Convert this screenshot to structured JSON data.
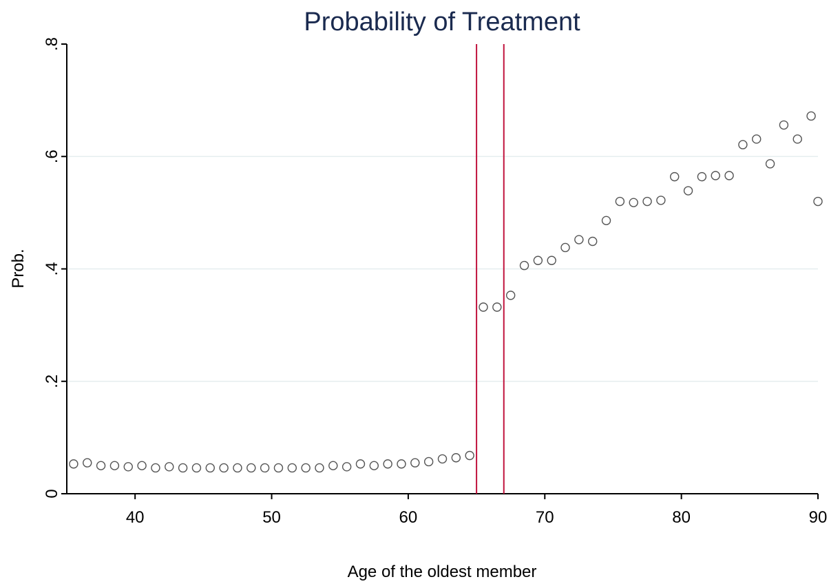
{
  "chart_data": {
    "type": "scatter",
    "title": "Probability of Treatment",
    "xlabel": "Age of the oldest member",
    "ylabel": "Prob.",
    "xlim": [
      35,
      90
    ],
    "ylim": [
      0,
      0.8
    ],
    "x_ticks": [
      40,
      50,
      60,
      70,
      80,
      90
    ],
    "x_tick_labels": [
      "40",
      "50",
      "60",
      "70",
      "80",
      "90"
    ],
    "y_ticks": [
      0,
      0.2,
      0.4,
      0.6,
      0.8
    ],
    "y_tick_labels": [
      "0",
      ".2",
      ".4",
      ".6",
      ".8"
    ],
    "grid": true,
    "reference_lines_x": [
      65,
      67
    ],
    "colors": {
      "title": "#1a2a4f",
      "gridline": "#e6eeef",
      "reference_line": "#c0123c",
      "marker": "#555555",
      "axis": "#000000"
    },
    "series": [
      {
        "marker": "hollow-circle",
        "x": [
          35.5,
          36.5,
          37.5,
          38.5,
          39.5,
          40.5,
          41.5,
          42.5,
          43.5,
          44.5,
          45.5,
          46.5,
          47.5,
          48.5,
          49.5,
          50.5,
          51.5,
          52.5,
          53.5,
          54.5,
          55.5,
          56.5,
          57.5,
          58.5,
          59.5,
          60.5,
          61.5,
          62.5,
          63.5,
          64.5,
          65.5,
          66.5,
          67.5,
          68.5,
          69.5,
          70.5,
          71.5,
          72.5,
          73.5,
          74.5,
          75.5,
          76.5,
          77.5,
          78.5,
          79.5,
          80.5,
          81.5,
          82.5,
          83.5,
          84.5,
          85.5,
          86.5,
          87.5,
          88.5,
          89.5,
          90
        ],
        "y": [
          0.053,
          0.055,
          0.05,
          0.05,
          0.048,
          0.05,
          0.046,
          0.048,
          0.046,
          0.046,
          0.046,
          0.046,
          0.046,
          0.046,
          0.046,
          0.046,
          0.046,
          0.046,
          0.046,
          0.05,
          0.048,
          0.053,
          0.05,
          0.053,
          0.053,
          0.055,
          0.057,
          0.062,
          0.064,
          0.068,
          0.332,
          0.332,
          0.353,
          0.406,
          0.415,
          0.415,
          0.438,
          0.452,
          0.449,
          0.486,
          0.52,
          0.518,
          0.52,
          0.522,
          0.564,
          0.539,
          0.564,
          0.566,
          0.566,
          0.621,
          0.631,
          0.587,
          0.656,
          0.631,
          0.672,
          0.52
        ]
      }
    ]
  }
}
